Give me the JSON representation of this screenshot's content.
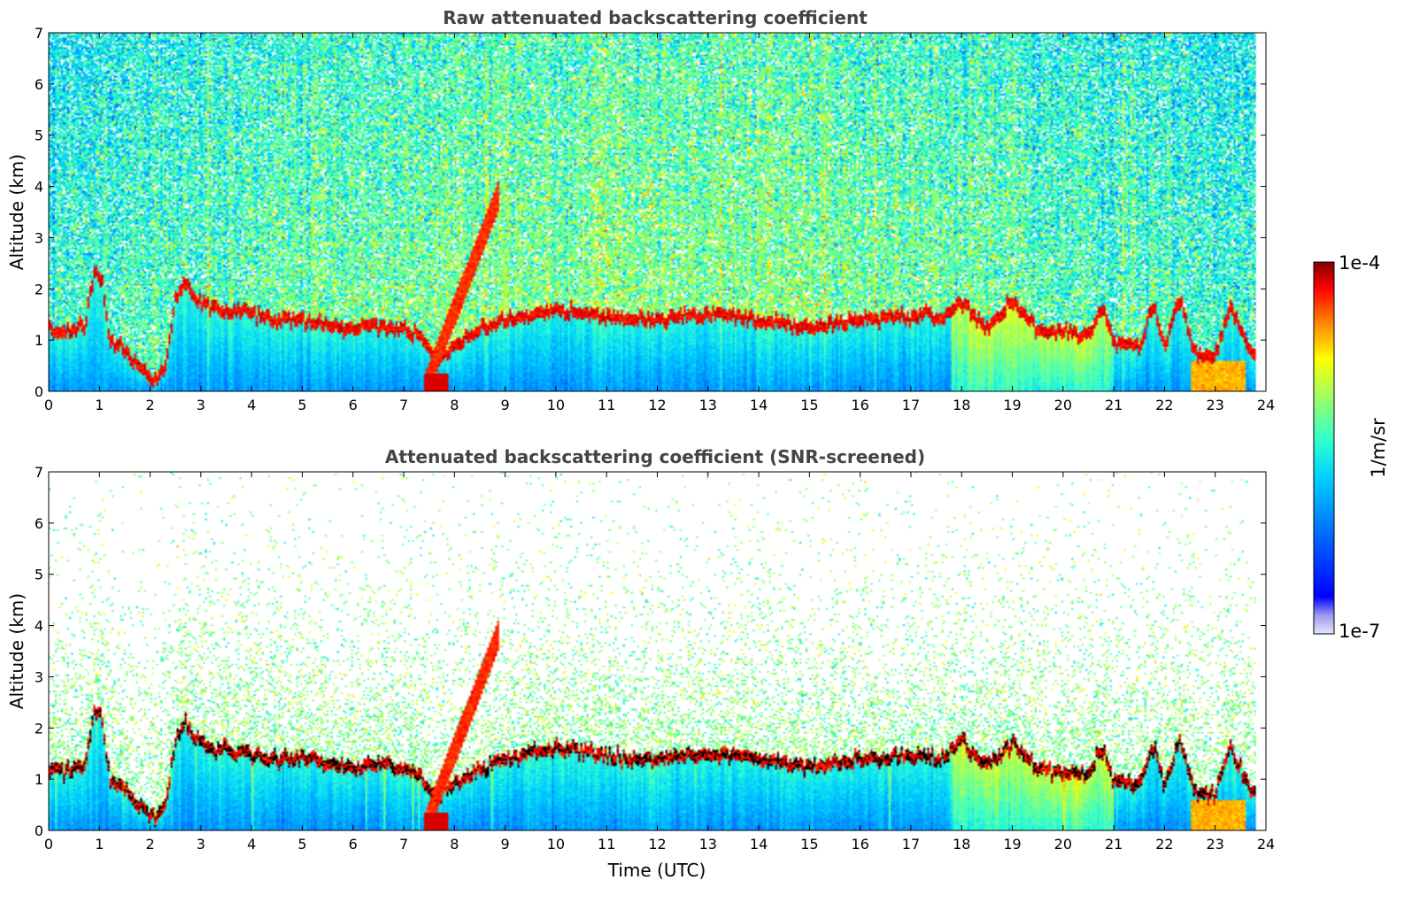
{
  "chart_data": [
    {
      "type": "heatmap",
      "title": "Raw attenuated backscattering coefficient",
      "xlabel": "",
      "ylabel": "Altitude (km)",
      "xlim": [
        0,
        24
      ],
      "ylim": [
        0,
        7
      ],
      "xticks": [
        "0",
        "1",
        "2",
        "3",
        "4",
        "5",
        "6",
        "7",
        "8",
        "9",
        "10",
        "11",
        "12",
        "13",
        "14",
        "15",
        "16",
        "17",
        "18",
        "19",
        "20",
        "21",
        "22",
        "23",
        "24"
      ],
      "yticks": [
        "0",
        "1",
        "2",
        "3",
        "4",
        "5",
        "6",
        "7"
      ],
      "variant": "raw"
    },
    {
      "type": "heatmap",
      "title": "Attenuated backscattering coefficient (SNR-screened)",
      "xlabel": "Time (UTC)",
      "ylabel": "Altitude (km)",
      "xlim": [
        0,
        24
      ],
      "ylim": [
        0,
        7
      ],
      "xticks": [
        "0",
        "1",
        "2",
        "3",
        "4",
        "5",
        "6",
        "7",
        "8",
        "9",
        "10",
        "11",
        "12",
        "13",
        "14",
        "15",
        "16",
        "17",
        "18",
        "19",
        "20",
        "21",
        "22",
        "23",
        "24"
      ],
      "yticks": [
        "0",
        "1",
        "2",
        "3",
        "4",
        "5",
        "6",
        "7"
      ],
      "variant": "screened"
    }
  ],
  "colorbar": {
    "label": "1/m/sr",
    "max_label": "1e-4",
    "min_label": "1e-7",
    "scale": "log",
    "range": [
      1e-07,
      0.0001
    ],
    "colormap": "jet"
  },
  "layer_profile": {
    "description_hours": [
      0,
      0.3,
      0.7,
      0.9,
      1.05,
      1.2,
      1.5,
      1.8,
      2.1,
      2.3,
      2.5,
      2.7,
      2.9,
      3.2,
      3.6,
      4.0,
      4.5,
      5.0,
      5.5,
      6.0,
      6.5,
      7.0,
      7.3,
      7.6,
      8.0,
      8.5,
      9.0,
      9.5,
      10.0,
      10.5,
      11.0,
      11.5,
      12.0,
      12.5,
      13.0,
      13.5,
      14.0,
      14.5,
      15.0,
      15.5,
      16.0,
      16.5,
      17.0,
      17.3,
      17.6,
      18.0,
      18.5,
      19.0,
      19.5,
      20.0,
      20.5,
      20.8,
      21.0,
      21.5,
      21.8,
      22.0,
      22.3,
      22.6,
      23.0,
      23.3,
      23.6,
      23.8
    ],
    "top_altitude_km": [
      1.2,
      1.15,
      1.3,
      2.3,
      2.2,
      1.0,
      0.8,
      0.5,
      0.2,
      0.5,
      1.8,
      2.1,
      1.8,
      1.6,
      1.55,
      1.5,
      1.4,
      1.45,
      1.3,
      1.25,
      1.3,
      1.2,
      1.1,
      0.7,
      0.9,
      1.2,
      1.4,
      1.5,
      1.6,
      1.55,
      1.45,
      1.4,
      1.4,
      1.45,
      1.5,
      1.5,
      1.4,
      1.35,
      1.25,
      1.3,
      1.4,
      1.45,
      1.45,
      1.5,
      1.4,
      1.75,
      1.25,
      1.75,
      1.2,
      1.15,
      1.15,
      1.6,
      1.0,
      0.9,
      1.7,
      0.85,
      1.8,
      0.75,
      0.7,
      1.7,
      1.0,
      0.7
    ]
  }
}
